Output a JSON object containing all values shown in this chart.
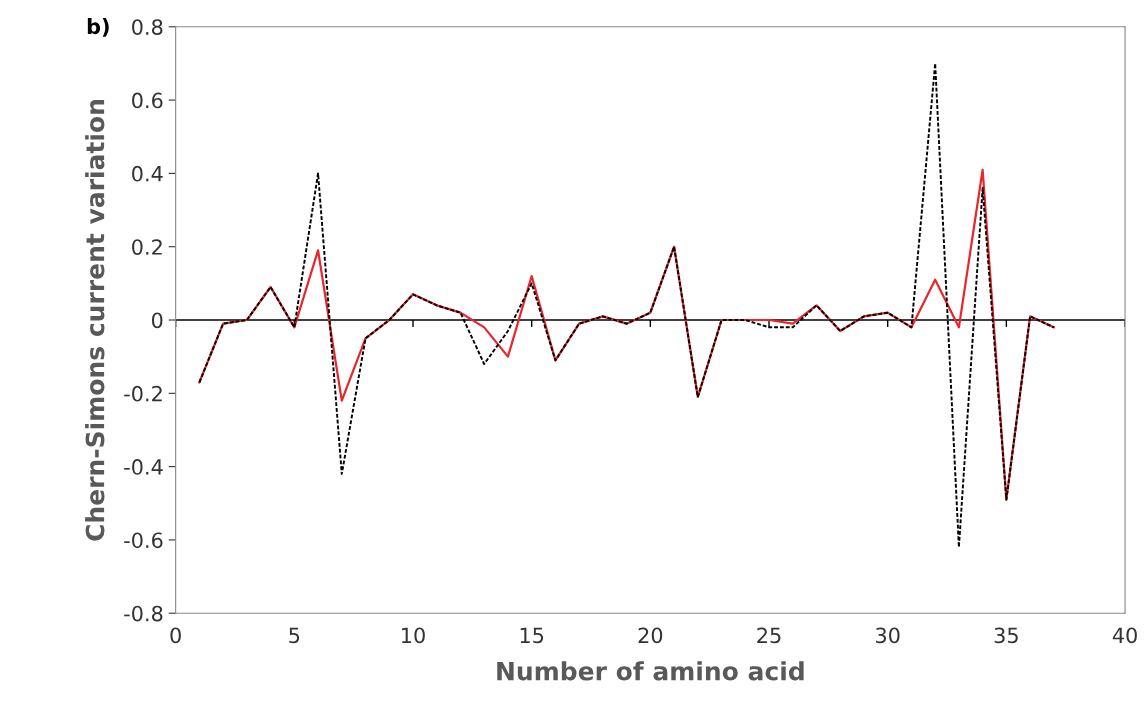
{
  "chart_data": {
    "type": "line",
    "annotations": [
      "b)"
    ],
    "xlabel": "Number of amino acid",
    "ylabel": "Chern-Simons current variation",
    "x": [
      1,
      2,
      3,
      4,
      5,
      6,
      7,
      8,
      9,
      10,
      11,
      12,
      13,
      14,
      15,
      16,
      17,
      18,
      19,
      20,
      21,
      22,
      23,
      24,
      25,
      26,
      27,
      28,
      29,
      30,
      31,
      32,
      33,
      34,
      35,
      36,
      37
    ],
    "series": [
      {
        "color": "#000000",
        "line_style": "dashed",
        "values": [
          -0.17,
          -0.01,
          0,
          0.09,
          -0.02,
          0.4,
          -0.42,
          -0.05,
          0,
          0.07,
          0.04,
          0.02,
          -0.12,
          -0.03,
          0.1,
          -0.11,
          -0.01,
          0.01,
          -0.01,
          0.02,
          0.2,
          -0.21,
          0,
          0,
          -0.02,
          -0.02,
          0.04,
          -0.03,
          0.01,
          0.02,
          -0.02,
          0.7,
          -0.62,
          0.36,
          -0.49,
          0.01,
          -0.02
        ]
      },
      {
        "color": "#e8262b",
        "line_style": "solid",
        "values": [
          -0.17,
          -0.01,
          0,
          0.09,
          -0.02,
          0.19,
          -0.22,
          -0.05,
          0,
          0.07,
          0.04,
          0.02,
          -0.02,
          -0.1,
          0.12,
          -0.11,
          -0.01,
          0.01,
          -0.01,
          0.02,
          0.2,
          -0.21,
          0,
          0,
          0,
          -0.01,
          0.04,
          -0.03,
          0.01,
          0.02,
          -0.02,
          0.11,
          -0.02,
          0.41,
          -0.49,
          0.01,
          -0.02
        ]
      }
    ],
    "xlim": [
      0,
      40
    ],
    "xticks": [
      0,
      5,
      10,
      15,
      20,
      25,
      30,
      35,
      40
    ],
    "ylim": [
      -0.8,
      0.8
    ],
    "yticks": [
      -0.8,
      -0.6,
      -0.4,
      -0.2,
      0,
      0.2,
      0.4,
      0.6,
      0.8
    ],
    "ref_lines": [
      {
        "axis": "y",
        "value": 0,
        "color": "#000000"
      }
    ],
    "grid": false,
    "legend": false,
    "marker": "none"
  }
}
